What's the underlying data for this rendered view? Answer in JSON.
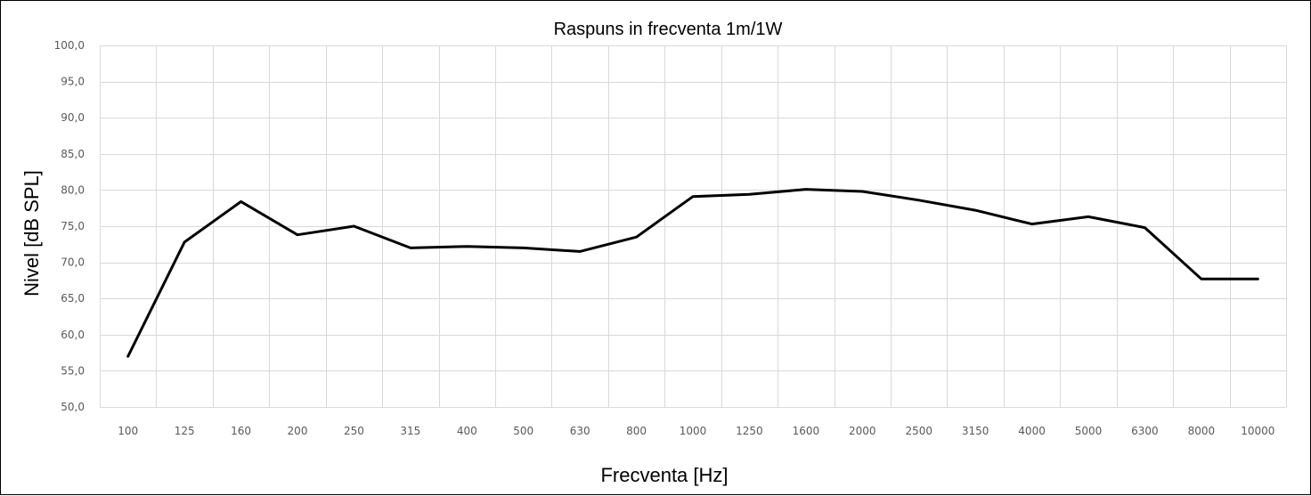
{
  "chart_data": {
    "type": "line",
    "title": "Raspuns in frecventa 1m/1W",
    "xlabel": "Frecventa [Hz]",
    "ylabel": "Nivel [dB SPL]",
    "categories": [
      "100",
      "125",
      "160",
      "200",
      "250",
      "315",
      "400",
      "500",
      "630",
      "800",
      "1000",
      "1250",
      "1600",
      "2000",
      "2500",
      "3150",
      "4000",
      "5000",
      "6300",
      "8000",
      "10000"
    ],
    "series": [
      {
        "values": [
          57.0,
          72.8,
          78.4,
          73.8,
          75.0,
          72.0,
          72.2,
          72.0,
          71.5,
          73.5,
          79.1,
          79.4,
          80.1,
          79.8,
          78.6,
          77.2,
          75.3,
          76.3,
          74.8,
          67.7,
          67.7
        ]
      }
    ],
    "ylim": [
      50,
      100
    ],
    "yticks": [
      "50,0",
      "55,0",
      "60,0",
      "65,0",
      "70,0",
      "75,0",
      "80,0",
      "85,0",
      "90,0",
      "95,0",
      "100,0"
    ],
    "grid": true,
    "legend": "none",
    "colors": {
      "line": "#000000",
      "grid": "#d9d9d9",
      "tick_text": "#595959",
      "border": "#000000"
    }
  }
}
